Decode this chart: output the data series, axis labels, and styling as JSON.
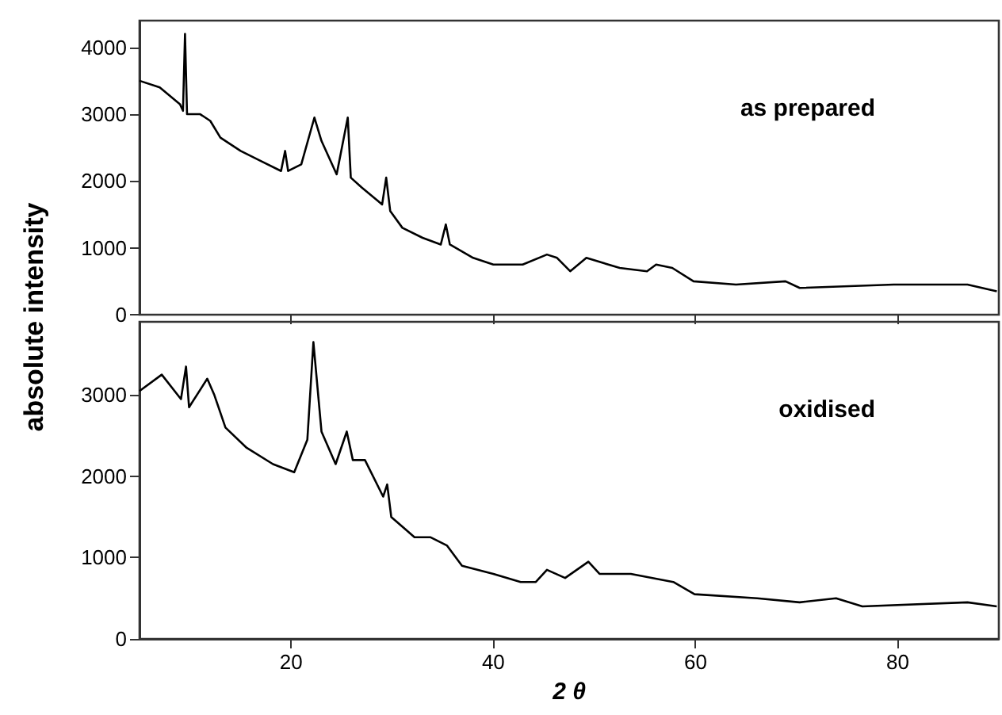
{
  "chart_data": [
    {
      "type": "line",
      "ylabel": "absolute intensity",
      "annotations": [
        "as prepared"
      ],
      "xlim": [
        5,
        90
      ],
      "xticks": [
        20,
        40,
        60,
        80
      ],
      "ylim": [
        0,
        4400
      ],
      "yticks": [
        0,
        1000,
        2000,
        3000,
        4000
      ],
      "tick_labels": "y",
      "grid": false,
      "marker": "none",
      "line_style": "solid",
      "x": [
        5,
        7,
        9,
        9.3,
        9.5,
        9.7,
        10.2,
        11,
        12,
        13,
        15,
        17,
        19,
        19.4,
        19.7,
        21,
        22.3,
        23,
        24.5,
        25.6,
        25.9,
        27,
        29,
        29.4,
        29.8,
        31,
        33,
        34.8,
        35.3,
        35.7,
        38,
        40,
        42.9,
        45.3,
        46.3,
        47.6,
        49.2,
        52.5,
        55.2,
        56.1,
        57.7,
        59.8,
        64,
        68.9,
        70.3,
        79.6,
        86.9,
        89.8
      ],
      "series": [
        {
          "color": "#000000",
          "values": [
            3500,
            3400,
            3150,
            3050,
            4200,
            3000,
            3000,
            3000,
            2900,
            2650,
            2450,
            2300,
            2150,
            2450,
            2150,
            2250,
            2950,
            2600,
            2100,
            2950,
            2050,
            1900,
            1650,
            2050,
            1550,
            1300,
            1150,
            1050,
            1350,
            1050,
            850,
            750,
            750,
            900,
            850,
            650,
            850,
            700,
            650,
            750,
            700,
            500,
            450,
            500,
            400,
            450,
            450,
            350
          ]
        }
      ]
    },
    {
      "type": "line",
      "xlabel": "2 θ",
      "annotations": [
        "oxidised"
      ],
      "xlim": [
        5,
        90
      ],
      "xticks": [
        20,
        40,
        60,
        80
      ],
      "ylim": [
        0,
        3900
      ],
      "yticks": [
        0,
        1000,
        2000,
        3000
      ],
      "grid": false,
      "marker": "none",
      "line_style": "solid",
      "x": [
        5,
        7.2,
        9.1,
        9.6,
        9.9,
        11.7,
        12.4,
        13.5,
        15.6,
        18.2,
        20.3,
        21.6,
        22.2,
        23,
        24.4,
        25.5,
        26.1,
        27.3,
        29.1,
        29.5,
        29.9,
        32.2,
        33.8,
        35.4,
        36.9,
        40,
        42.7,
        44.2,
        45.3,
        47.1,
        49.4,
        50.5,
        53.6,
        57.8,
        59.9,
        66.1,
        70.3,
        73.9,
        76.5,
        86.9,
        89.8
      ],
      "series": [
        {
          "color": "#000000",
          "values": [
            3050,
            3250,
            2950,
            3350,
            2850,
            3200,
            3000,
            2600,
            2350,
            2150,
            2050,
            2450,
            3650,
            2550,
            2150,
            2550,
            2200,
            2200,
            1750,
            1900,
            1500,
            1250,
            1250,
            1150,
            900,
            800,
            700,
            700,
            850,
            750,
            950,
            800,
            800,
            700,
            550,
            500,
            450,
            500,
            400,
            450,
            400
          ]
        }
      ]
    }
  ]
}
